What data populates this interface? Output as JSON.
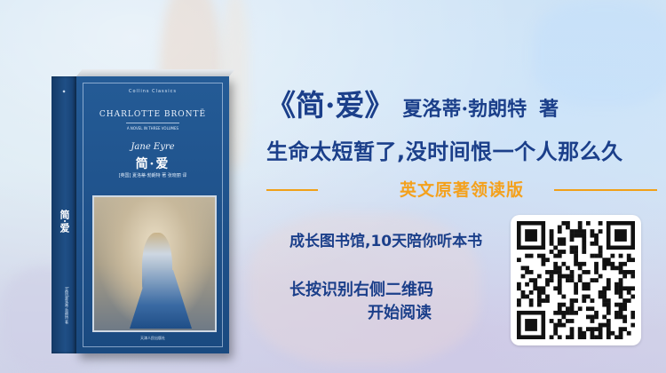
{
  "book_cover": {
    "series": "Collins Classics",
    "author": "CHARLOTTE BRONTË",
    "subtitle": "A NOVEL IN THREE VOLUMES",
    "english_title": "Jane Eyre",
    "chinese_title": "简·爱",
    "credit": "[英国] 夏洛蒂·勃朗特 著",
    "translator": "张晓丽 译",
    "publisher": "天津人民出版社",
    "spine_title": "简·爱",
    "spine_author": "[英国]夏洛蒂·勃朗特 著"
  },
  "headline": {
    "book_title": "《简·爱》",
    "author": "夏洛蒂·勃朗特",
    "author_mark": "著"
  },
  "tagline": "生命太短暂了,没时间恨一个人那么久",
  "highlight": "英文原著领读版",
  "subline": "成长图书馆,10天陪你听本书",
  "instruction": {
    "line1": "长按识别右侧二维码",
    "line2": "开始阅读"
  },
  "colors": {
    "primary_text": "#1b3f8a",
    "accent": "#f4a11c",
    "book_blue": "#1e5089"
  },
  "qr_code": {
    "label": "qr-code"
  }
}
